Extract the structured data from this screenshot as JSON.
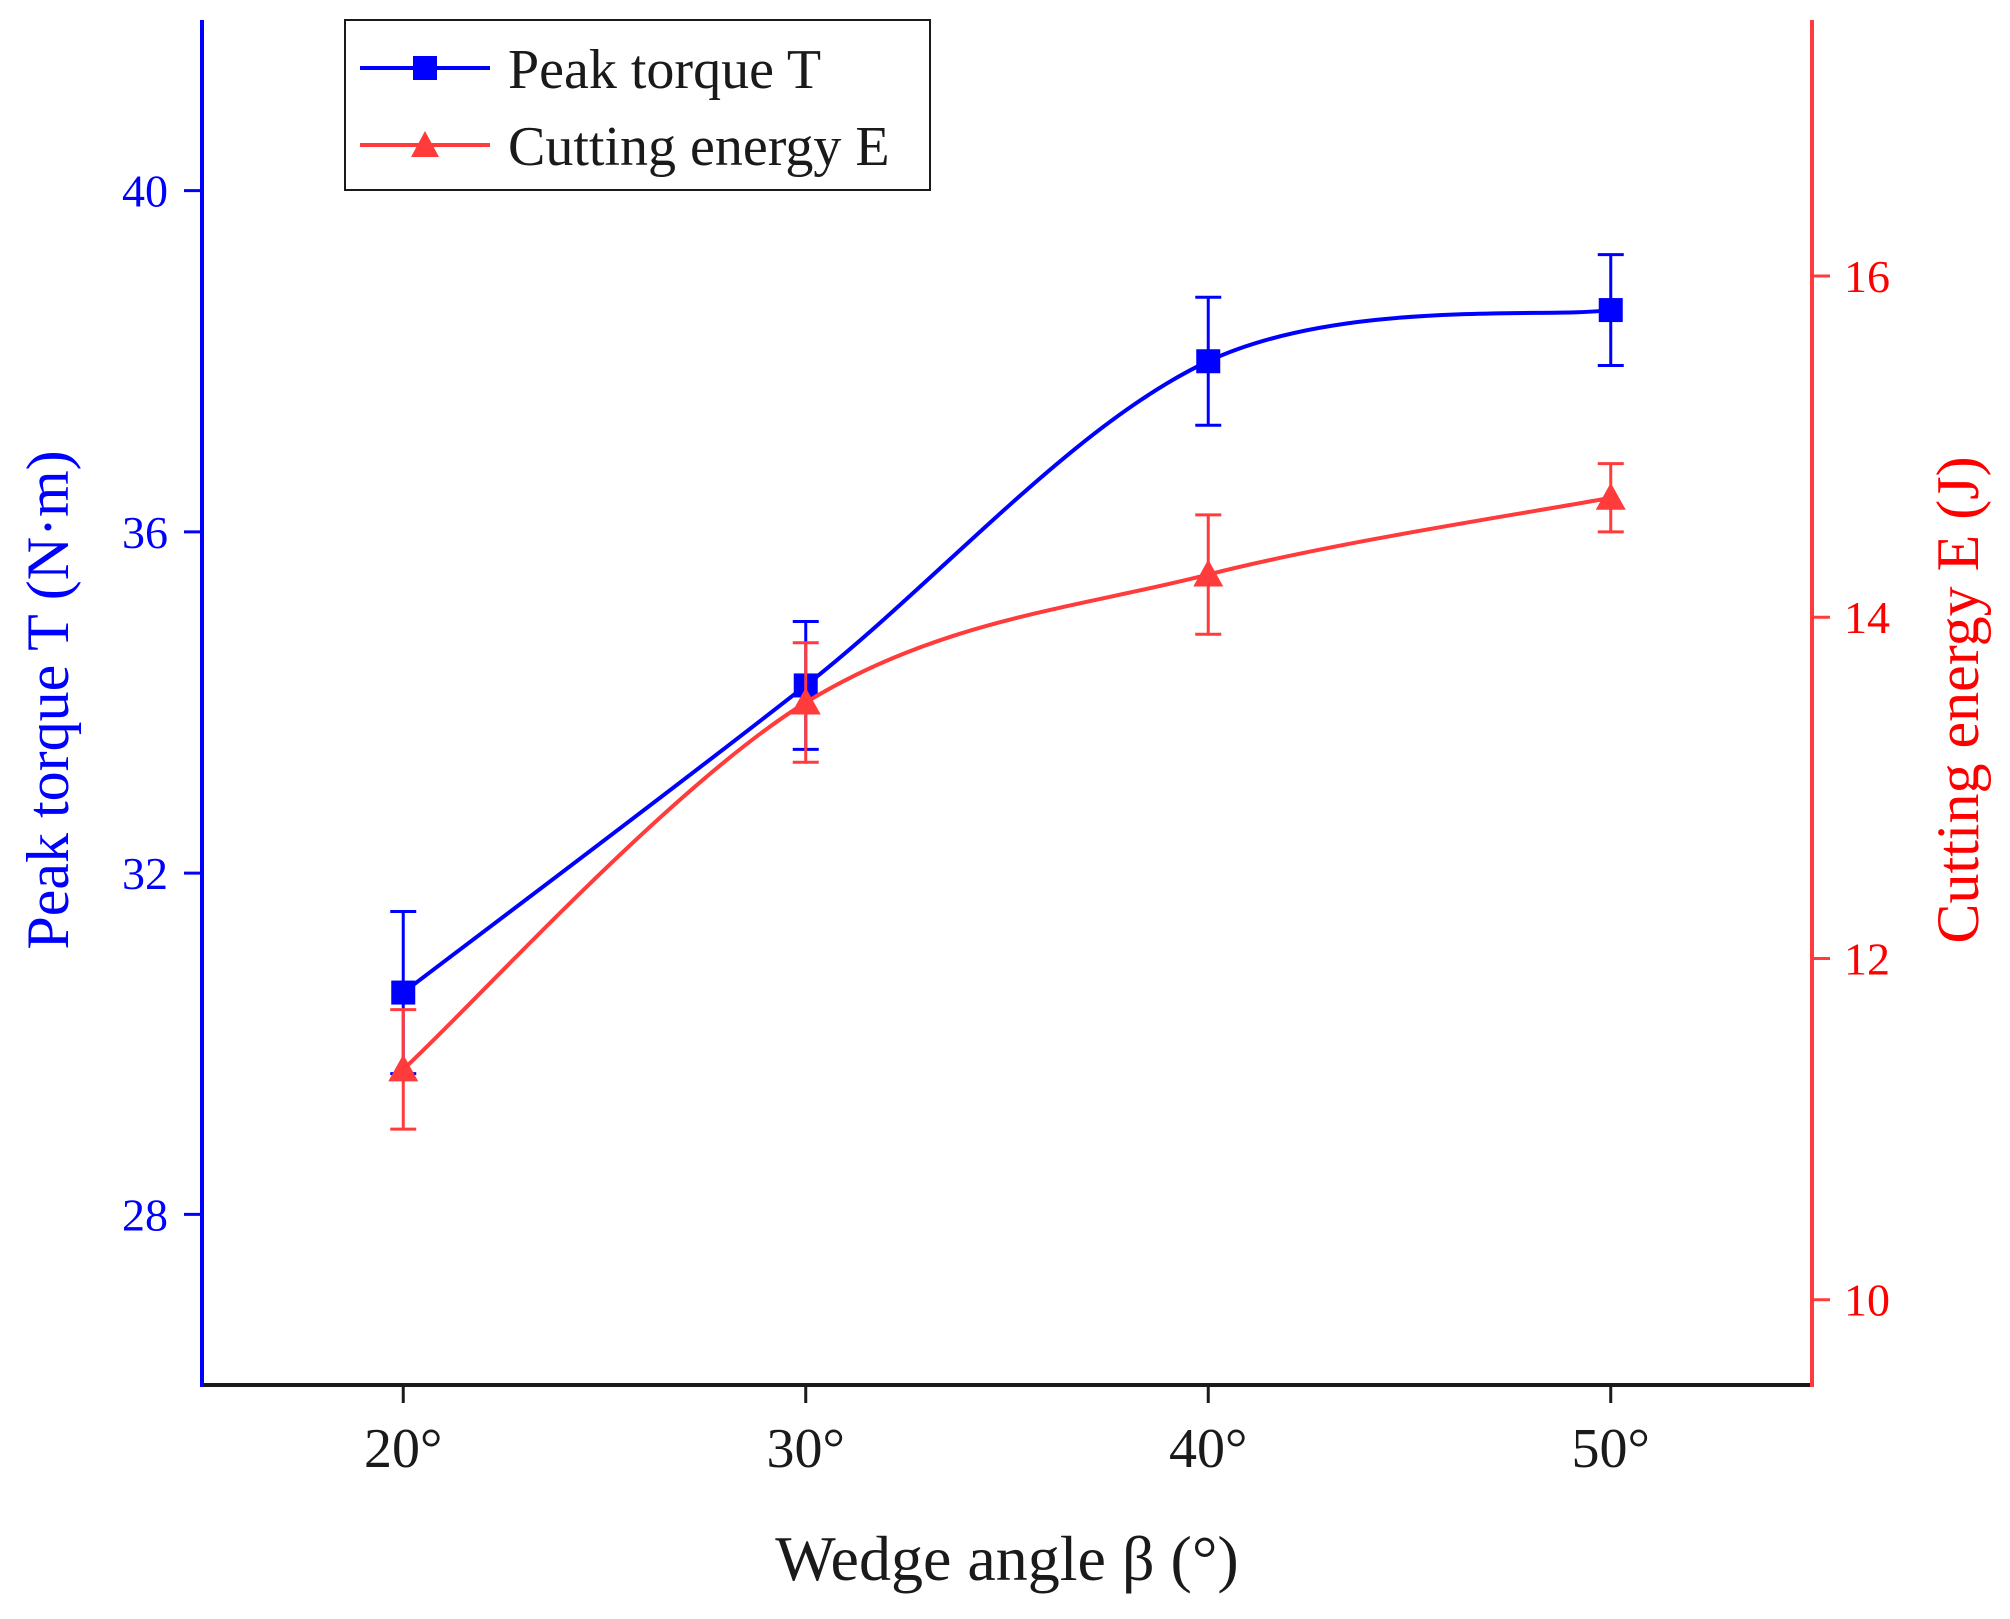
{
  "chart_data": {
    "type": "line",
    "title": "",
    "xlabel": "Wedge angle β (°)",
    "x": [
      20,
      30,
      40,
      50
    ],
    "categories": [
      "20°",
      "30°",
      "40°",
      "50°"
    ],
    "xlim": [
      15,
      55
    ],
    "ylabel_left": "Peak torque T (N·m)",
    "ylabel_right": "Cutting energy E (J)",
    "ylim_left": [
      26,
      42
    ],
    "ylim_right": [
      9.5,
      17.5
    ],
    "yticks_left": [
      28,
      32,
      36,
      40
    ],
    "yticks_right": [
      10,
      12,
      14,
      16
    ],
    "grid": false,
    "legend_position": "top-left",
    "series": [
      {
        "name": "Peak torque T",
        "axis": "left",
        "color": "#0000ff",
        "marker": "square",
        "values": [
          30.6,
          34.2,
          38.0,
          38.6
        ],
        "errors": [
          0.95,
          0.75,
          0.75,
          0.65
        ]
      },
      {
        "name": "Cutting energy E",
        "axis": "right",
        "color": "#ff3b3b",
        "marker": "triangle",
        "values": [
          11.35,
          13.5,
          14.25,
          14.7
        ],
        "errors": [
          0.35,
          0.35,
          0.35,
          0.2
        ]
      }
    ]
  }
}
